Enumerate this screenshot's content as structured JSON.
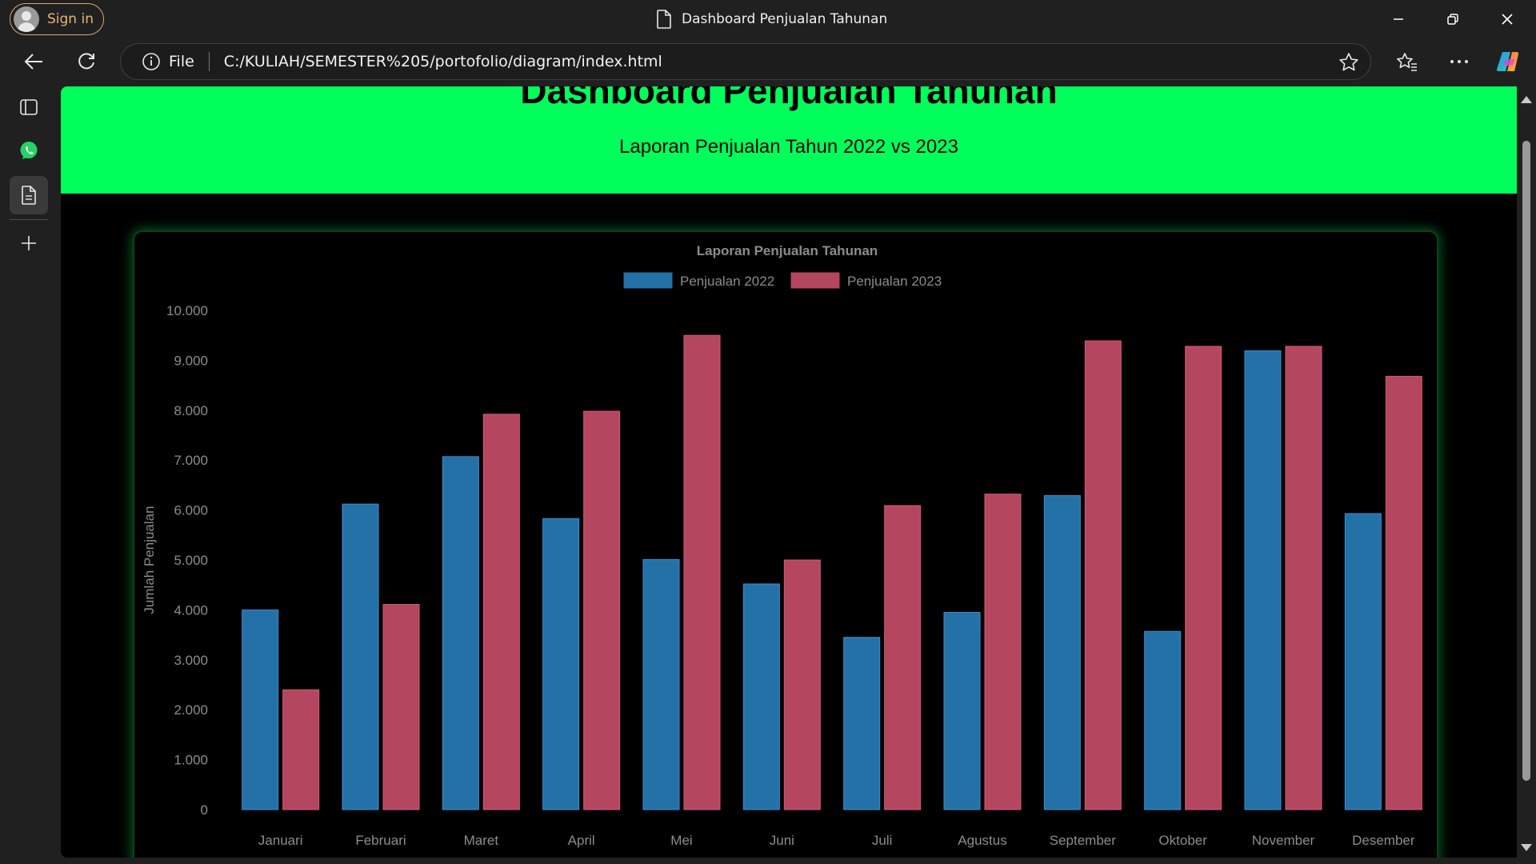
{
  "browser": {
    "signin_label": "Sign in",
    "tab_title": "Dashboard Penjualan Tahunan",
    "address_scheme": "File",
    "address_url": "C:/KULIAH/SEMESTER%205/portofolio/diagram/index.html"
  },
  "icons": [
    "profile-icon",
    "page-icon",
    "minimize-icon",
    "restore-icon",
    "close-icon",
    "back-icon",
    "refresh-icon",
    "info-icon",
    "favorite-star-icon",
    "favorites-icon",
    "more-icon",
    "copilot-icon",
    "sidebar-panel-icon",
    "whatsapp-icon",
    "document-icon",
    "add-icon"
  ],
  "colors": {
    "header_band": "#00ff5a",
    "series_2022": "#2471a8",
    "series_2023": "#b5465f"
  },
  "page": {
    "title": "Dashboard Penjualan Tahunan",
    "subtitle": "Laporan Penjualan Tahun 2022 vs 2023"
  },
  "chart_data": {
    "type": "bar",
    "title": "Laporan Penjualan Tahunan",
    "xlabel": "",
    "ylabel": "Jumlah Penjualan",
    "ylim": [
      0,
      10000
    ],
    "yticks": [
      "0",
      "1.000",
      "2.000",
      "3.000",
      "4.000",
      "5.000",
      "6.000",
      "7.000",
      "8.000",
      "9.000",
      "10.000"
    ],
    "legend_position": "top-center",
    "grid": false,
    "categories": [
      "Januari",
      "Februari",
      "Maret",
      "April",
      "Mei",
      "Juni",
      "Juli",
      "Agustus",
      "September",
      "Oktober",
      "November",
      "Desember"
    ],
    "series": [
      {
        "name": "Penjualan 2022",
        "color": "#2471a8",
        "values": [
          4000,
          6120,
          7070,
          5830,
          5010,
          4520,
          3450,
          3950,
          6290,
          3570,
          9190,
          5930
        ]
      },
      {
        "name": "Penjualan 2023",
        "color": "#b5465f",
        "values": [
          2400,
          4110,
          7920,
          7980,
          9500,
          5000,
          6090,
          6320,
          9390,
          9280,
          9280,
          8680
        ]
      }
    ]
  }
}
